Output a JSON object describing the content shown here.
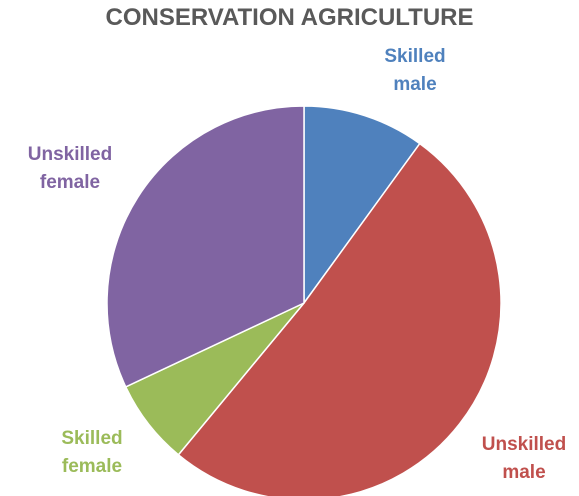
{
  "chart_data": {
    "type": "pie",
    "title": "CONSERVATION AGRICULTURE",
    "slices": [
      {
        "label_lines": [
          "Skilled",
          "male"
        ],
        "value": 10,
        "color": "#4F81BD"
      },
      {
        "label_lines": [
          "Unskilled",
          "male"
        ],
        "value": 51,
        "color": "#C0504D"
      },
      {
        "label_lines": [
          "Skilled",
          "female"
        ],
        "value": 7,
        "color": "#9BBB59"
      },
      {
        "label_lines": [
          "Unskilled",
          "female"
        ],
        "value": 32,
        "color": "#8064A2"
      }
    ],
    "start_angle_deg": 0,
    "direction": "clockwise",
    "legend": "none",
    "data_labels": "category names outside slices"
  }
}
